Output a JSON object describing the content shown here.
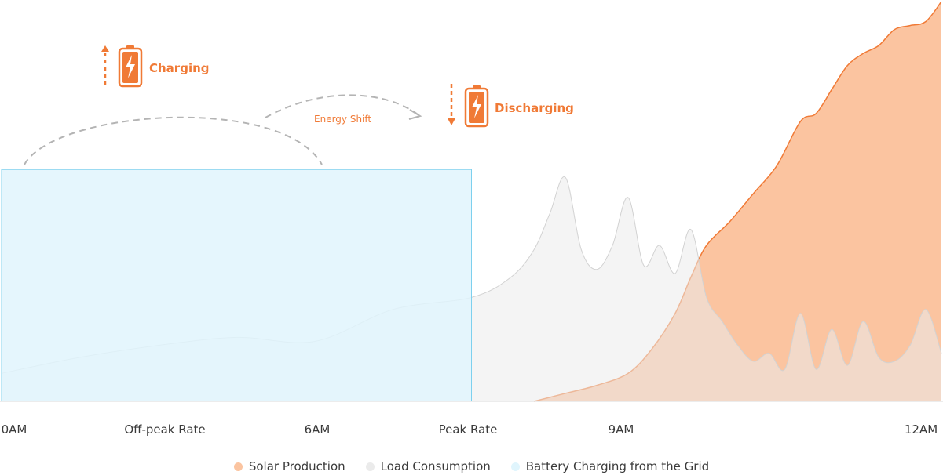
{
  "chart_data": {
    "type": "area",
    "title": "",
    "xlabel": "",
    "ylabel": "",
    "x_ticks": [
      "0AM",
      "Off-peak Rate",
      "6AM",
      "Peak Rate",
      "9AM",
      "12AM"
    ],
    "grid": false,
    "legend_placement": "bottom",
    "series": [
      {
        "name": "Solar Production",
        "color": "#fbc4a0",
        "stroke": "#f07a36",
        "x": [
          6.8,
          7.2,
          7.6,
          8.0,
          8.3,
          8.6,
          8.8,
          9.0,
          9.3,
          9.6,
          9.9,
          10.2,
          10.4,
          10.6,
          10.8,
          11.0,
          11.2,
          11.4,
          11.6,
          11.8,
          12.0
        ],
        "values": [
          0,
          2,
          4,
          7,
          13,
          22,
          31,
          39,
          45,
          52,
          59,
          70,
          72,
          78,
          84,
          87,
          89,
          93,
          94,
          95,
          100
        ]
      },
      {
        "name": "Load Consumption",
        "color": "#ebebeb",
        "stroke": "#d2d2d2",
        "x": [
          0,
          1,
          2,
          3,
          4,
          5,
          6,
          6.5,
          6.8,
          7.0,
          7.2,
          7.4,
          7.6,
          7.8,
          8.0,
          8.2,
          8.4,
          8.6,
          8.8,
          9.0,
          9.2,
          9.4,
          9.6,
          9.8,
          10.0,
          10.2,
          10.4,
          10.6,
          10.8,
          11.0,
          11.2,
          11.4,
          11.6,
          11.8,
          12.0
        ],
        "values": [
          7,
          11,
          14,
          16,
          15,
          23,
          26,
          31,
          38,
          47,
          56,
          38,
          33,
          39,
          51,
          34,
          39,
          32,
          43,
          26,
          20,
          14,
          10,
          12,
          8,
          22,
          8,
          18,
          9,
          20,
          11,
          10,
          14,
          23,
          12
        ]
      },
      {
        "name": "Battery Charging from the Grid",
        "color": "#e0f5fd",
        "stroke": "#7dd0ee",
        "x": [
          0,
          6
        ],
        "values": [
          58,
          58
        ]
      }
    ],
    "annotations": [
      "Charging",
      "Energy Shift",
      "Discharging"
    ]
  },
  "annotations": {
    "charging": "Charging",
    "energy_shift": "Energy Shift",
    "discharging": "Discharging"
  },
  "legend": [
    {
      "label": "Solar Production",
      "color": "#fbc4a0"
    },
    {
      "label": "Load Consumption",
      "color": "#ebebeb"
    },
    {
      "label": "Battery Charging from the Grid",
      "color": "#e0f5fd"
    }
  ],
  "colors": {
    "accent": "#f07a36",
    "text": "#3a3a3a",
    "dashed": "#b4b4b4"
  },
  "icons": [
    "battery-charging-icon",
    "arrow-up-icon",
    "arrow-down-icon"
  ]
}
